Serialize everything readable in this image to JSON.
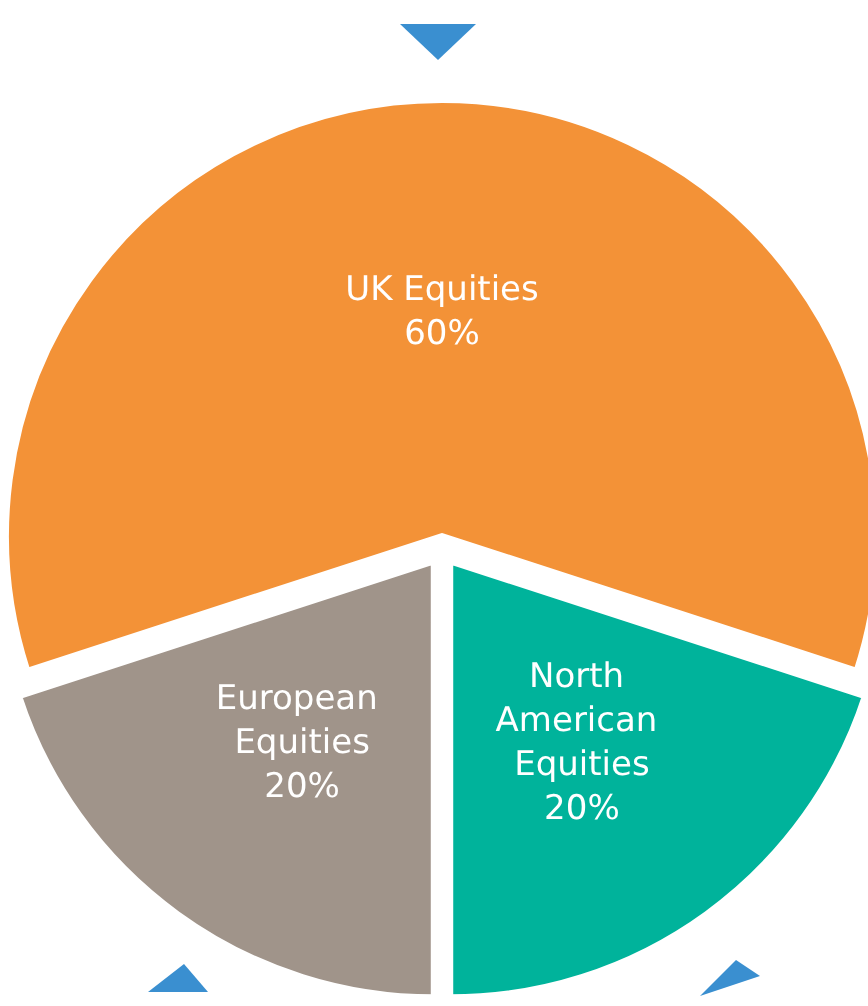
{
  "chart_data": {
    "type": "pie",
    "categories": [
      "UK Equities",
      "North American Equities",
      "European Equities"
    ],
    "values": [
      60,
      20,
      20
    ],
    "colors": [
      "#f39237",
      "#00b39b",
      "#a0948a"
    ],
    "value_labels": [
      "60%",
      "20%",
      "20%"
    ]
  }
}
